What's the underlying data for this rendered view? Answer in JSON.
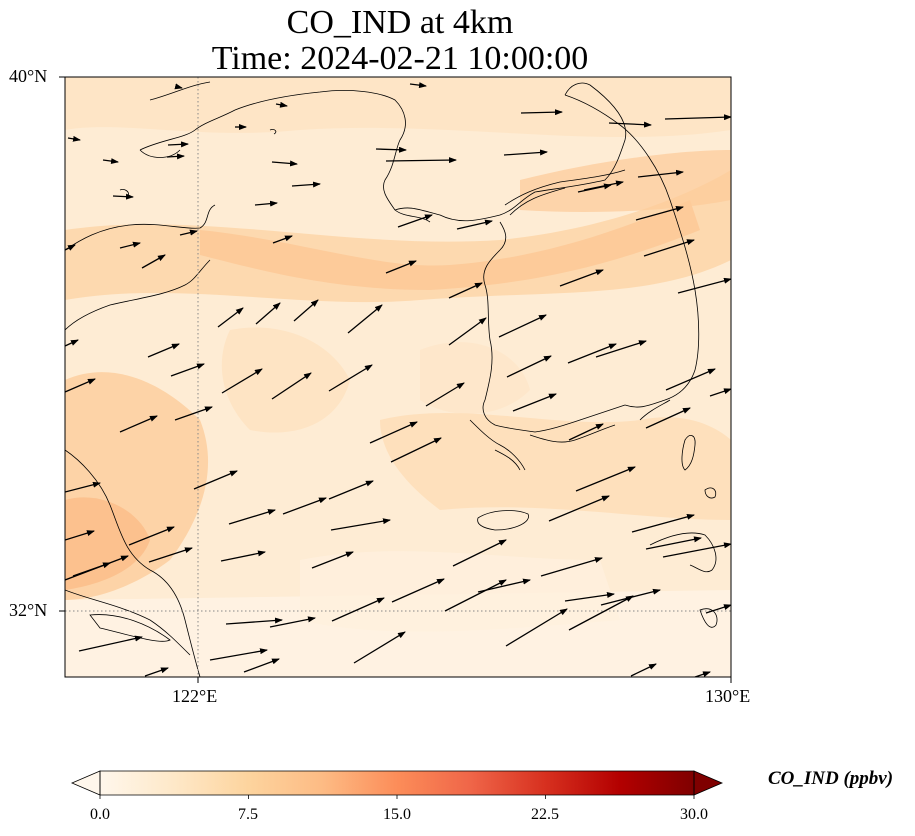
{
  "title": {
    "line1": "CO_IND at 4km",
    "line2": "Time: 2024-02-21 10:00:00"
  },
  "map": {
    "variable": "CO_IND",
    "height": "4km",
    "time": "2024-02-21 10:00:00",
    "lon_range": [
      120,
      130
    ],
    "lat_range": [
      31,
      40
    ],
    "gridlines": {
      "lon": [
        122
      ],
      "lat": [
        32
      ],
      "style": "dotted"
    },
    "lon_ticks": [
      "122°E",
      "130°E"
    ],
    "lat_ticks": [
      "40°N",
      "32°N"
    ],
    "vectors_note": "wind vectors, predominantly westerly to west-southwesterly"
  },
  "colorbar": {
    "label": "CO_IND (ppbv)",
    "colormap": "OrRd",
    "range": [
      0,
      30
    ],
    "extend": "both",
    "ticks": [
      "0.0",
      "7.5",
      "15.0",
      "22.5",
      "30.0"
    ],
    "colors": [
      "#fff7ec",
      "#fee8c8",
      "#fdd49e",
      "#fdbb84",
      "#fc8d59",
      "#ef6548",
      "#d7301f",
      "#b30000",
      "#7f0000"
    ]
  }
}
